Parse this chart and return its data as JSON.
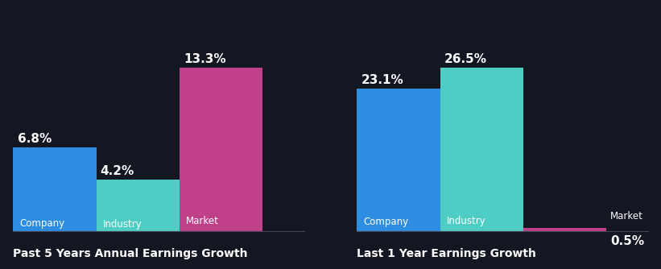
{
  "background_color": "#131722",
  "left_chart": {
    "title": "Past 5 Years Annual Earnings Growth",
    "bars": [
      {
        "label": "Company",
        "value": 6.8,
        "color": "#2e8de0"
      },
      {
        "label": "Industry",
        "value": 4.2,
        "color": "#4ecdc4"
      },
      {
        "label": "Market",
        "value": 13.3,
        "color": "#c0408a"
      }
    ]
  },
  "right_chart": {
    "title": "Last 1 Year Earnings Growth",
    "bars": [
      {
        "label": "Company",
        "value": 23.1,
        "color": "#2e8de0"
      },
      {
        "label": "Industry",
        "value": 26.5,
        "color": "#4ecdc4"
      },
      {
        "label": "Market",
        "value": 0.5,
        "color": "#c0408a"
      }
    ]
  },
  "text_color": "#ffffff",
  "label_fontsize": 8.5,
  "value_fontsize": 11,
  "title_fontsize": 10
}
